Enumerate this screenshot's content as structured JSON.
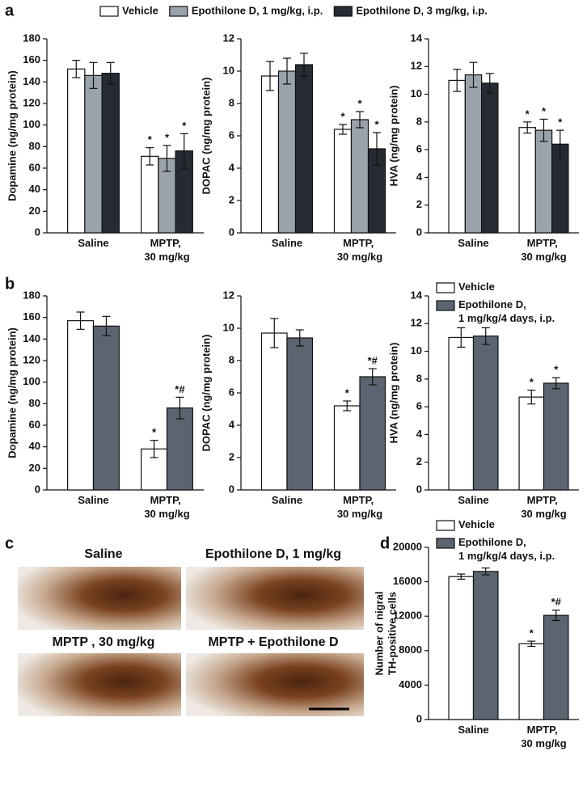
{
  "panel_labels": [
    "a",
    "b",
    "c",
    "d"
  ],
  "micrographs": {
    "labels": [
      "Saline",
      "Epothilone D, 1 mg/kg",
      "MPTP , 30 mg/kg",
      "MPTP + Epothilone D"
    ]
  },
  "chart_data": [
    {
      "type": "bar",
      "ylabel": [
        "Dopamine (ng/mg protein)"
      ],
      "categories": [
        "Saline",
        "MPTP, 30 mg/kg"
      ],
      "ylim": [
        0,
        180
      ],
      "yticks": [
        0,
        20,
        40,
        60,
        80,
        100,
        120,
        140,
        160,
        180
      ],
      "legend": "top",
      "series": [
        {
          "name": "Vehicle",
          "color": "#ffffff",
          "values": [
            152,
            71
          ],
          "errors": [
            8,
            8
          ],
          "significance": [
            null,
            "*"
          ]
        },
        {
          "name": "Epothilone D, 1 mg/kg, i.p.",
          "color": "#9aa3ab",
          "values": [
            146,
            69
          ],
          "errors": [
            12,
            12
          ],
          "significance": [
            null,
            "*"
          ]
        },
        {
          "name": "Epothilone D, 3 mg/kg, i.p.",
          "color": "#262b33",
          "values": [
            148,
            76
          ],
          "errors": [
            10,
            16
          ],
          "significance": [
            null,
            "*"
          ]
        }
      ]
    },
    {
      "type": "bar",
      "ylabel": [
        "DOPAC (ng/mg protein)"
      ],
      "categories": [
        "Saline",
        "MPTP, 30 mg/kg"
      ],
      "ylim": [
        0,
        12
      ],
      "yticks": [
        0,
        2,
        4,
        6,
        8,
        10,
        12
      ],
      "series": [
        {
          "color": "#ffffff",
          "values": [
            9.7,
            6.4
          ],
          "errors": [
            0.9,
            0.3
          ],
          "significance": [
            null,
            "*"
          ]
        },
        {
          "color": "#9aa3ab",
          "values": [
            10.0,
            7.0
          ],
          "errors": [
            0.8,
            0.5
          ],
          "significance": [
            null,
            "*"
          ]
        },
        {
          "color": "#262b33",
          "values": [
            10.4,
            5.2
          ],
          "errors": [
            0.7,
            1.0
          ],
          "significance": [
            null,
            "*"
          ]
        }
      ]
    },
    {
      "type": "bar",
      "ylabel": [
        "HVA (ng/mg protein)"
      ],
      "categories": [
        "Saline",
        "MPTP, 30 mg/kg"
      ],
      "ylim": [
        0,
        14
      ],
      "yticks": [
        0,
        2,
        4,
        6,
        8,
        10,
        12,
        14
      ],
      "series": [
        {
          "color": "#ffffff",
          "values": [
            11.0,
            7.6
          ],
          "errors": [
            0.8,
            0.4
          ],
          "significance": [
            null,
            "*"
          ]
        },
        {
          "color": "#9aa3ab",
          "values": [
            11.4,
            7.4
          ],
          "errors": [
            0.9,
            0.8
          ],
          "significance": [
            null,
            "*"
          ]
        },
        {
          "color": "#262b33",
          "values": [
            10.8,
            6.4
          ],
          "errors": [
            0.7,
            1.0
          ],
          "significance": [
            null,
            "*"
          ]
        }
      ]
    },
    {
      "type": "bar",
      "ylabel": [
        "Dopamine (ng/mg protein)"
      ],
      "categories": [
        "Saline",
        "MPTP, 30 mg/kg"
      ],
      "ylim": [
        0,
        180
      ],
      "yticks": [
        0,
        20,
        40,
        60,
        80,
        100,
        120,
        140,
        160,
        180
      ],
      "series": [
        {
          "color": "#ffffff",
          "values": [
            157,
            38
          ],
          "errors": [
            8,
            8
          ],
          "significance": [
            null,
            "*"
          ]
        },
        {
          "color": "#5b6470",
          "values": [
            152,
            76
          ],
          "errors": [
            9,
            10
          ],
          "significance": [
            null,
            "*#"
          ]
        }
      ]
    },
    {
      "type": "bar",
      "ylabel": [
        "DOPAC (ng/mg protein)"
      ],
      "categories": [
        "Saline",
        "MPTP, 30 mg/kg"
      ],
      "ylim": [
        0,
        12
      ],
      "yticks": [
        0,
        2,
        4,
        6,
        8,
        10,
        12
      ],
      "series": [
        {
          "color": "#ffffff",
          "values": [
            9.7,
            5.2
          ],
          "errors": [
            0.9,
            0.3
          ],
          "significance": [
            null,
            "*"
          ]
        },
        {
          "color": "#5b6470",
          "values": [
            9.4,
            7.0
          ],
          "errors": [
            0.5,
            0.5
          ],
          "significance": [
            null,
            "*#"
          ]
        }
      ]
    },
    {
      "type": "bar",
      "ylabel": [
        "HVA (ng/mg protein)"
      ],
      "categories": [
        "Saline",
        "MPTP, 30 mg/kg"
      ],
      "ylim": [
        0,
        14
      ],
      "yticks": [
        0,
        2,
        4,
        6,
        8,
        10,
        12,
        14
      ],
      "legend": "top-left",
      "series": [
        {
          "name": "Vehicle",
          "color": "#ffffff",
          "values": [
            11.0,
            6.7
          ],
          "errors": [
            0.7,
            0.5
          ],
          "significance": [
            null,
            "*"
          ]
        },
        {
          "name": "Epothilone D, 1 mg/kg/4 days, i.p.",
          "color": "#5b6470",
          "values": [
            11.1,
            7.7
          ],
          "errors": [
            0.6,
            0.4
          ],
          "significance": [
            null,
            "*"
          ]
        }
      ]
    },
    {
      "type": "bar",
      "ylabel": [
        "Number of nigral",
        "TH-positive cells"
      ],
      "categories": [
        "Saline",
        "MPTP, 30 mg/kg"
      ],
      "ylim": [
        0,
        20000
      ],
      "yticks": [
        0,
        4000,
        8000,
        12000,
        16000,
        20000
      ],
      "legend": "top-left",
      "series": [
        {
          "name": "Vehicle",
          "color": "#ffffff",
          "values": [
            16600,
            8800
          ],
          "errors": [
            300,
            300
          ],
          "significance": [
            null,
            "*"
          ]
        },
        {
          "name": "Epothilone D, 1 mg/kg/4 days, i.p.",
          "color": "#5b6470",
          "values": [
            17200,
            12100
          ],
          "errors": [
            400,
            600
          ],
          "significance": [
            null,
            "*#"
          ]
        }
      ]
    }
  ]
}
